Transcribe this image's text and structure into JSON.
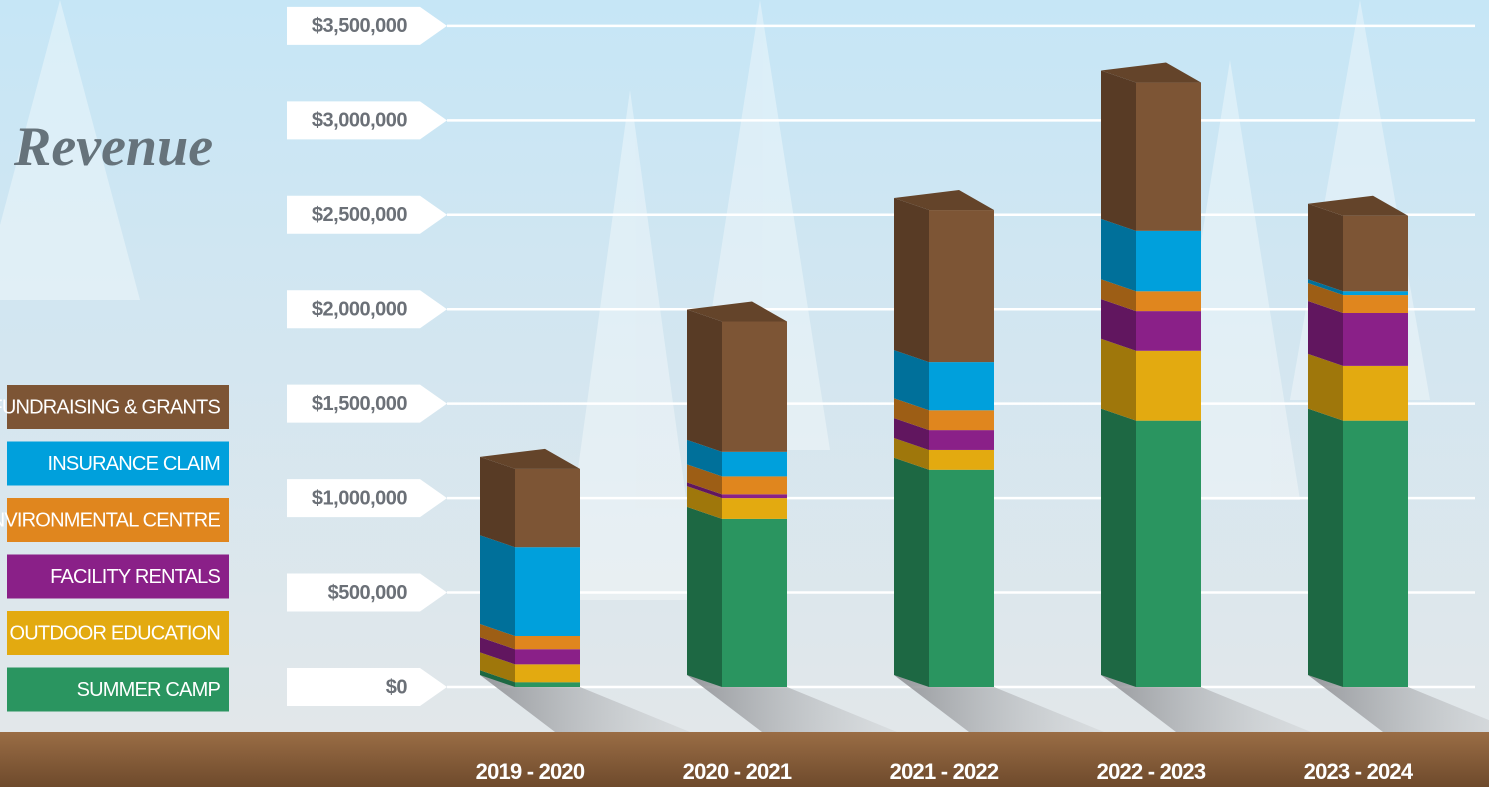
{
  "chart_data": {
    "type": "stacked-bar-3d",
    "title": "Revenue",
    "categories": [
      "2019 - 2020",
      "2020 - 2021",
      "2021 - 2022",
      "2022 - 2023",
      "2023 - 2024"
    ],
    "series": [
      {
        "name": "SUMMER CAMP",
        "color": "#2a9560",
        "values": [
          25000,
          890000,
          1150000,
          1410000,
          1410000
        ]
      },
      {
        "name": "OUTDOOR EDUCATION",
        "color": "#e3aa10",
        "values": [
          95000,
          110000,
          105000,
          370000,
          290000
        ]
      },
      {
        "name": "FACILITY RENTALS",
        "color": "#8a2088",
        "values": [
          80000,
          20000,
          105000,
          210000,
          280000
        ]
      },
      {
        "name": "ENVIRONMENTAL CENTRE",
        "color": "#e0861e",
        "values": [
          70000,
          95000,
          105000,
          105000,
          95000
        ]
      },
      {
        "name": "INSURANCE CLAIM",
        "color": "#00a0dc",
        "values": [
          470000,
          130000,
          255000,
          320000,
          20000
        ]
      },
      {
        "name": "FUNDRAISING & GRANTS",
        "color": "#7d5535",
        "values": [
          415000,
          690000,
          805000,
          785000,
          400000
        ]
      }
    ],
    "ylim": [
      0,
      3600000
    ],
    "yticks": [
      {
        "value": 0,
        "label": "$0"
      },
      {
        "value": 500000,
        "label": "$500,000"
      },
      {
        "value": 1000000,
        "label": "$1,000,000"
      },
      {
        "value": 1500000,
        "label": "$1,500,000"
      },
      {
        "value": 2000000,
        "label": "$2,000,000"
      },
      {
        "value": 2500000,
        "label": "$2,500,000"
      },
      {
        "value": 3000000,
        "label": "$3,000,000"
      },
      {
        "value": 3500000,
        "label": "$3,500,000"
      }
    ],
    "grid": true
  }
}
